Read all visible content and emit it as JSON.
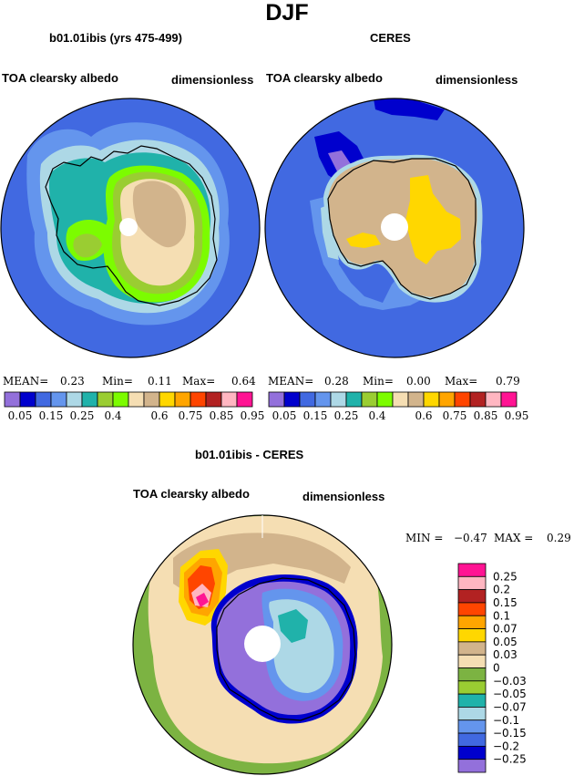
{
  "title": "DJF",
  "panels": [
    {
      "model": "b01.01ibis (yrs 475-499)",
      "field": "TOA clearsky albedo",
      "units": "dimensionless",
      "stats": {
        "mean_label": "MEAN=",
        "mean": "0.23",
        "min_label": "Min=",
        "min": "0.11",
        "max_label": "Max=",
        "max": "0.64"
      }
    },
    {
      "model": "CERES",
      "field": "TOA clearsky albedo",
      "units": "dimensionless",
      "stats": {
        "mean_label": "MEAN=",
        "mean": "0.28",
        "min_label": "Min=",
        "min": "0.00",
        "max_label": "Max=",
        "max": "0.79"
      }
    },
    {
      "model": "b01.01ibis - CERES",
      "field": "TOA clearsky albedo",
      "units": "dimensionless",
      "stats": {
        "min_label": "MIN =",
        "min": "−0.47",
        "max_label": "MAX =",
        "max": "0.29"
      }
    }
  ],
  "abs_colorbar": {
    "labels": [
      "0.05",
      "0.15",
      "0.25",
      "0.4",
      "0.6",
      "0.75",
      "0.85",
      "0.95"
    ],
    "colors": [
      "#9370db",
      "#0000cd",
      "#4169e1",
      "#6495ed",
      "#add8e6",
      "#20b2aa",
      "#9acd32",
      "#7cfc00",
      "#f5deb3",
      "#d2b48c",
      "#ffd700",
      "#ffa500",
      "#ff4500",
      "#b22222",
      "#ffb6c1",
      "#ff1493"
    ]
  },
  "diff_colorbar": {
    "labels": [
      "0.25",
      "0.2",
      "0.15",
      "0.1",
      "0.07",
      "0.05",
      "0.03",
      "0",
      "−0.03",
      "−0.05",
      "−0.07",
      "−0.1",
      "−0.15",
      "−0.2",
      "−0.25"
    ],
    "colors": [
      "#ff1493",
      "#ffb6c1",
      "#b22222",
      "#ff4500",
      "#ffa500",
      "#ffd700",
      "#d2b48c",
      "#f5deb3",
      "#7cb342",
      "#9acd32",
      "#20b2aa",
      "#add8e6",
      "#6495ed",
      "#4169e1",
      "#0000cd",
      "#9370db"
    ]
  },
  "chart_data": [
    {
      "type": "heatmap",
      "projection": "south polar stereographic",
      "title": "b01.01ibis (yrs 475-499)",
      "field": "TOA clearsky albedo",
      "units": "dimensionless",
      "mean": 0.23,
      "min": 0.11,
      "max": 0.64,
      "levels": [
        0.05,
        0.1,
        0.15,
        0.2,
        0.25,
        0.3,
        0.4,
        0.5,
        0.6,
        0.7,
        0.75,
        0.8,
        0.85,
        0.9,
        0.95
      ],
      "dominant_values": {
        "ocean": 0.15,
        "sea_ice_edge": 0.2,
        "ice_margin": 0.35,
        "interior_plateau": 0.6
      }
    },
    {
      "type": "heatmap",
      "projection": "south polar stereographic",
      "title": "CERES",
      "field": "TOA clearsky albedo",
      "units": "dimensionless",
      "mean": 0.28,
      "min": 0.0,
      "max": 0.79,
      "levels": [
        0.05,
        0.1,
        0.15,
        0.2,
        0.25,
        0.3,
        0.4,
        0.5,
        0.6,
        0.7,
        0.75,
        0.8,
        0.85,
        0.9,
        0.95
      ],
      "dominant_values": {
        "ocean": 0.15,
        "coastal": 0.5,
        "interior_plateau": 0.65,
        "high_plateau": 0.72
      }
    },
    {
      "type": "heatmap",
      "projection": "south polar stereographic",
      "title": "b01.01ibis - CERES",
      "field": "TOA clearsky albedo",
      "units": "dimensionless",
      "min": -0.47,
      "max": 0.29,
      "levels": [
        -0.25,
        -0.2,
        -0.15,
        -0.1,
        -0.07,
        -0.05,
        -0.03,
        0,
        0.03,
        0.05,
        0.07,
        0.1,
        0.15,
        0.2,
        0.25
      ],
      "dominant_values": {
        "ocean": -0.02,
        "sea_ice_zone": 0.02,
        "antarctic_interior": -0.3,
        "east_plateau": -0.1,
        "peninsula_region": 0.2
      }
    }
  ]
}
